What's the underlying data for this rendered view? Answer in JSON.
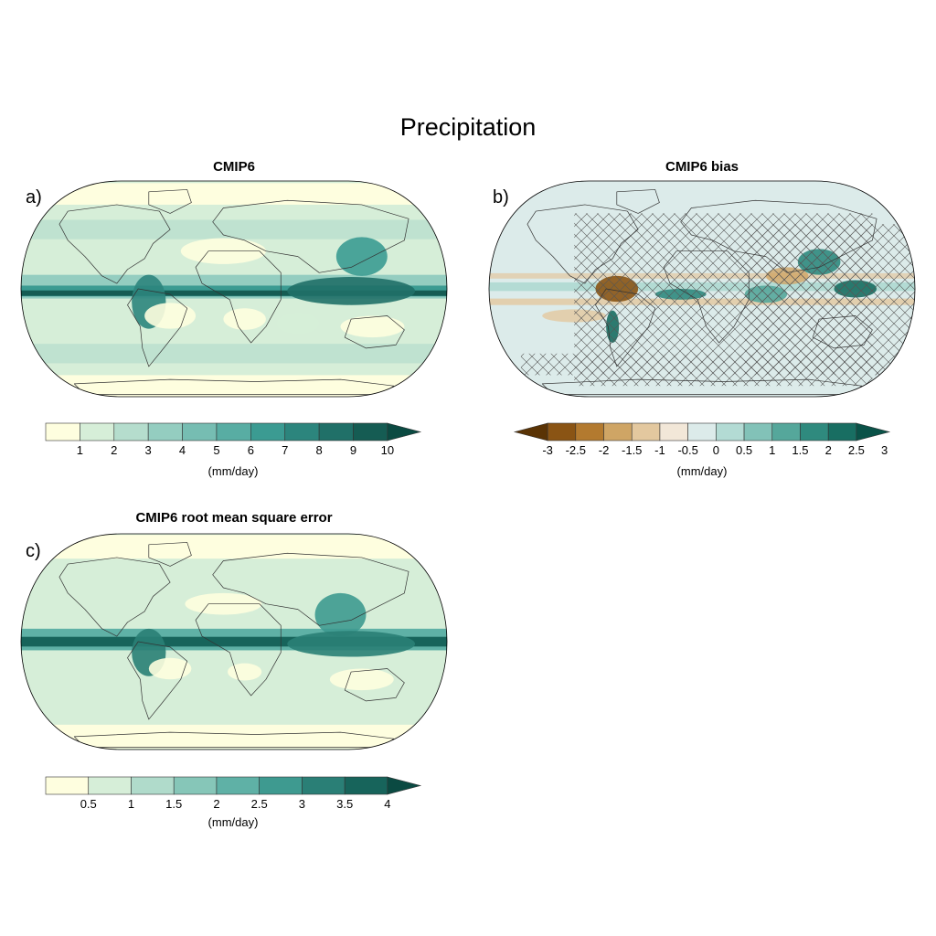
{
  "title": "Precipitation",
  "panels": [
    {
      "letter": "a)",
      "title": "CMIP6",
      "colorbar": {
        "ticks": [
          "1",
          "2",
          "3",
          "4",
          "5",
          "6",
          "7",
          "8",
          "9",
          "10"
        ],
        "units": "(mm/day)",
        "colors": [
          "#fefedf",
          "#d6eed8",
          "#b5ddcd",
          "#94cdc0",
          "#76bdb2",
          "#58ada3",
          "#3b9b92",
          "#2c857d",
          "#207068",
          "#155c53",
          "#0b4a42"
        ]
      }
    },
    {
      "letter": "b)",
      "title": "CMIP6 bias",
      "hatching": "cross-hatched regions overlay",
      "colorbar": {
        "ticks": [
          "-3",
          "-2.5",
          "-2",
          "-1.5",
          "-1",
          "-0.5",
          "0",
          "0.5",
          "1",
          "1.5",
          "2",
          "2.5",
          "3"
        ],
        "units": "(mm/day)",
        "colors": [
          "#5a3305",
          "#8a5414",
          "#b37a2f",
          "#cfa565",
          "#e3c89f",
          "#f2e7d8",
          "#dcebea",
          "#b3dbd4",
          "#82c2b8",
          "#55a79b",
          "#2f8a7e",
          "#186e62",
          "#0a5248"
        ]
      }
    },
    {
      "letter": "c)",
      "title": "CMIP6 root mean square error",
      "colorbar": {
        "ticks": [
          "0.5",
          "1",
          "1.5",
          "2",
          "2.5",
          "3",
          "3.5",
          "4"
        ],
        "units": "(mm/day)",
        "colors": [
          "#fefedf",
          "#d6eed8",
          "#b0dbcb",
          "#86c6b8",
          "#5fb1a6",
          "#3e9a90",
          "#2a7f76",
          "#17645b",
          "#0b4a42"
        ]
      }
    }
  ]
}
